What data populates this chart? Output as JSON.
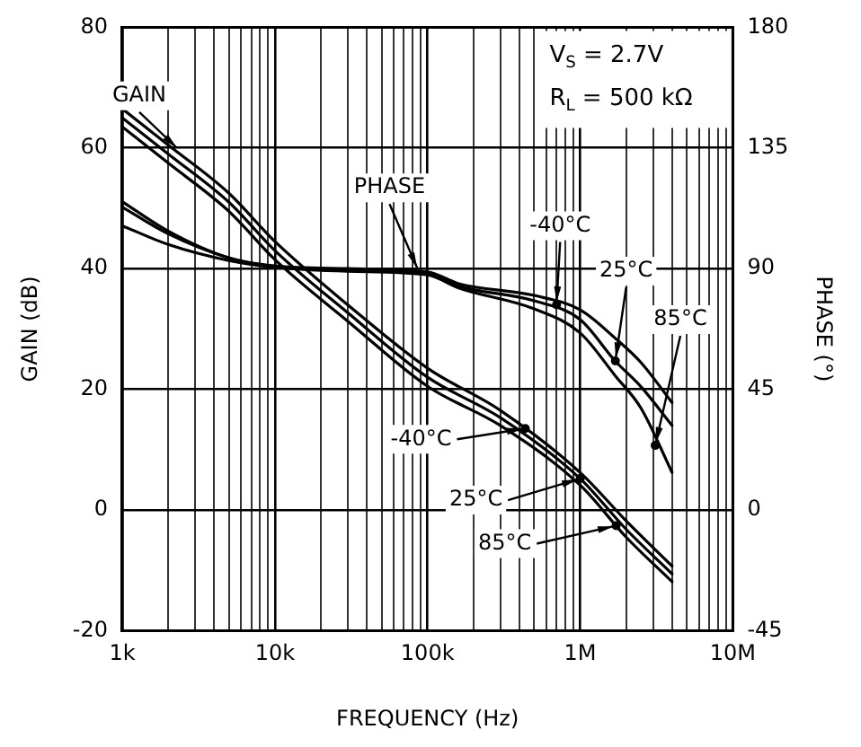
{
  "chart_data": {
    "type": "line",
    "xlabel": "FREQUENCY (Hz)",
    "ylabel": "GAIN (dB)",
    "y2label": "PHASE (°)",
    "log": "x",
    "grid": true,
    "legend": false,
    "marker": "none",
    "line_style": "solid",
    "xlim": [
      1000,
      10000000
    ],
    "xticks": [
      {
        "value": 1000,
        "label": "1k"
      },
      {
        "value": 2000,
        "label": null
      },
      {
        "value": 3000,
        "label": null
      },
      {
        "value": 4000,
        "label": null
      },
      {
        "value": 5000,
        "label": null
      },
      {
        "value": 6000,
        "label": null
      },
      {
        "value": 7000,
        "label": null
      },
      {
        "value": 8000,
        "label": null
      },
      {
        "value": 9000,
        "label": null
      },
      {
        "value": 10000,
        "label": "10k"
      },
      {
        "value": 20000,
        "label": null
      },
      {
        "value": 30000,
        "label": null
      },
      {
        "value": 40000,
        "label": null
      },
      {
        "value": 50000,
        "label": null
      },
      {
        "value": 60000,
        "label": null
      },
      {
        "value": 70000,
        "label": null
      },
      {
        "value": 80000,
        "label": null
      },
      {
        "value": 90000,
        "label": null
      },
      {
        "value": 100000,
        "label": "100k"
      },
      {
        "value": 200000,
        "label": null
      },
      {
        "value": 300000,
        "label": null
      },
      {
        "value": 400000,
        "label": null
      },
      {
        "value": 500000,
        "label": null
      },
      {
        "value": 600000,
        "label": null
      },
      {
        "value": 700000,
        "label": null
      },
      {
        "value": 800000,
        "label": null
      },
      {
        "value": 900000,
        "label": null
      },
      {
        "value": 1000000,
        "label": "1M"
      },
      {
        "value": 2000000,
        "label": null
      },
      {
        "value": 3000000,
        "label": null
      },
      {
        "value": 4000000,
        "label": null
      },
      {
        "value": 5000000,
        "label": null
      },
      {
        "value": 6000000,
        "label": null
      },
      {
        "value": 7000000,
        "label": null
      },
      {
        "value": 8000000,
        "label": null
      },
      {
        "value": 9000000,
        "label": null
      },
      {
        "value": 10000000,
        "label": "10M"
      }
    ],
    "ylim": [
      -20,
      80
    ],
    "yticks": [
      -20,
      0,
      20,
      40,
      60,
      80
    ],
    "y2lim": [
      -45,
      180
    ],
    "y2ticks": [
      -45,
      0,
      45,
      90,
      135,
      180
    ],
    "series": [
      {
        "color": "#000000",
        "x": [
          1000,
          2000,
          5000,
          10000,
          30000,
          100000,
          300000,
          1000000,
          2000000,
          4000000
        ],
        "values": [
          66.5,
          60.5,
          52.5,
          44.5,
          34,
          23.5,
          16.5,
          6.2,
          -1.8,
          -9.3
        ]
      },
      {
        "color": "#000000",
        "x": [
          1000,
          2000,
          5000,
          10000,
          30000,
          100000,
          300000,
          1000000,
          2000000,
          4000000
        ],
        "values": [
          65,
          59,
          51,
          43,
          32.7,
          22,
          15.3,
          5.2,
          -3.2,
          -10.6
        ]
      },
      {
        "color": "#000000",
        "x": [
          1000,
          2000,
          5000,
          10000,
          30000,
          100000,
          300000,
          1000000,
          2000000,
          4000000
        ],
        "values": [
          63.5,
          57.5,
          49.5,
          41.5,
          31.3,
          20.5,
          14,
          4.1,
          -4.5,
          -11.9
        ]
      },
      {
        "color": "#000000",
        "axis": "y2",
        "x": [
          1000,
          2000,
          5000,
          10000,
          30000,
          100000,
          160000,
          500000,
          1000000,
          1700000,
          2500000,
          4000000
        ],
        "values": [
          115,
          104,
          94,
          91,
          90,
          88.8,
          84.4,
          80,
          74.6,
          64,
          55,
          40
        ]
      },
      {
        "color": "#000000",
        "axis": "y2",
        "x": [
          1000,
          2000,
          5000,
          10000,
          30000,
          100000,
          160000,
          500000,
          1000000,
          1700000,
          2500000,
          4000000
        ],
        "values": [
          113,
          103,
          94,
          90.7,
          89.5,
          88.4,
          83.5,
          78,
          71,
          55.5,
          46,
          31.5
        ]
      },
      {
        "color": "#000000",
        "axis": "y2",
        "x": [
          1000,
          2000,
          5000,
          10000,
          30000,
          100000,
          160000,
          500000,
          1000000,
          1700000,
          2500000,
          4000000
        ],
        "values": [
          106,
          99,
          93,
          90.5,
          89,
          87.7,
          82.8,
          75,
          66,
          50,
          38,
          14
        ]
      }
    ],
    "annotations": [
      {
        "text": "GAIN",
        "x": 2350,
        "y": 59.7
      },
      {
        "text": "PHASE",
        "x": 87000,
        "y": 39.7
      },
      {
        "text": "-40°C",
        "x": 700000,
        "y": 34
      },
      {
        "text": "25°C",
        "x": 1700000,
        "y": 24.7
      },
      {
        "text": "85°C",
        "x": 3100000,
        "y": 10.7
      },
      {
        "text": "-40°C",
        "x": 437000,
        "y": 13.5
      },
      {
        "text": "25°C",
        "x": 1000000,
        "y": 5.2
      },
      {
        "text": "85°C",
        "x": 1720000,
        "y": -2.6
      },
      "V$_{S}$ = 2.7V",
      "R$_{L}$ = 500 kΩ"
    ]
  }
}
